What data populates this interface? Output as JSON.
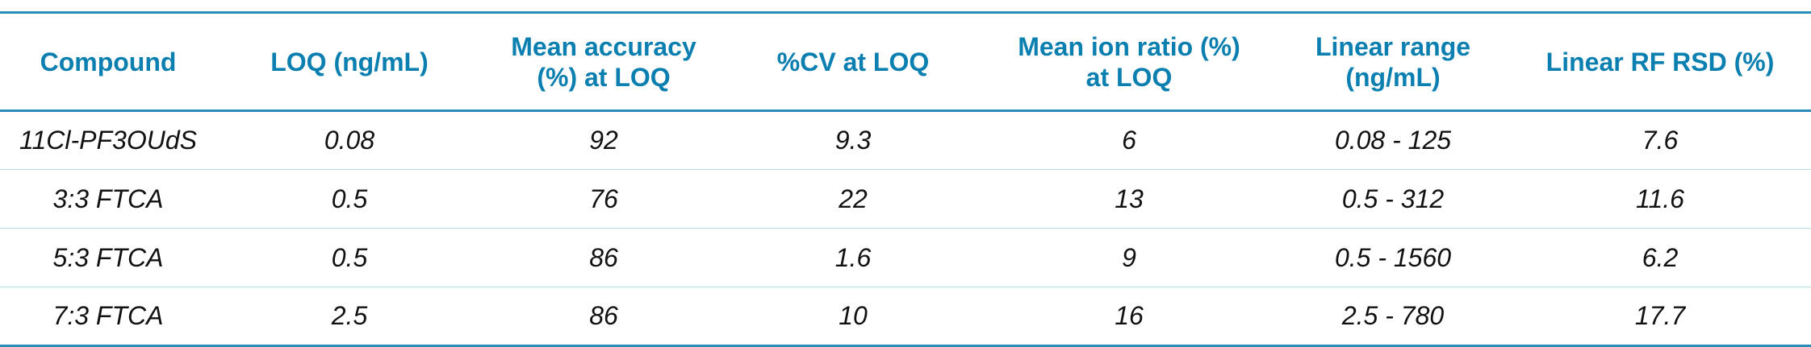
{
  "table": {
    "headers": [
      "Compound",
      "LOQ (ng/mL)",
      "Mean accuracy\n(%) at LOQ",
      "%CV at LOQ",
      "Mean ion ratio (%)\nat LOQ",
      "Linear range\n(ng/mL)",
      "Linear RF RSD (%)"
    ],
    "rows": [
      [
        "11Cl-PF3OUdS",
        "0.08",
        "92",
        "9.3",
        "6",
        "0.08 - 125",
        "7.6"
      ],
      [
        "3:3 FTCA",
        "0.5",
        "76",
        "22",
        "13",
        "0.5 - 312",
        "11.6"
      ],
      [
        "5:3 FTCA",
        "0.5",
        "86",
        "1.6",
        "9",
        "0.5 - 1560",
        "6.2"
      ],
      [
        "7:3 FTCA",
        "2.5",
        "86",
        "10",
        "16",
        "2.5 - 780",
        "17.7"
      ]
    ]
  },
  "colors": {
    "header_text": "#0a7fb0",
    "rule": "#2b8cb8",
    "row_divider": "#b8dbe9",
    "body_text": "#111111"
  }
}
